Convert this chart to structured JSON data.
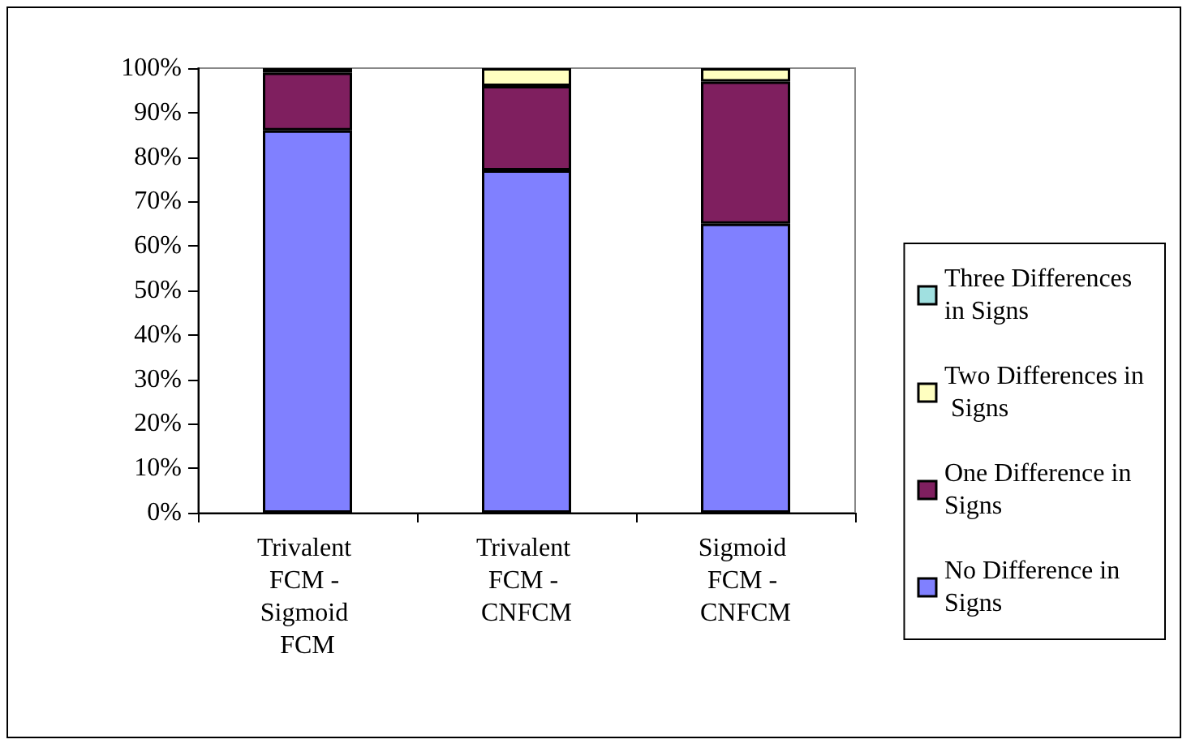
{
  "chart_data": {
    "type": "bar",
    "stacked": true,
    "categories": [
      "Trivalent FCM - Sigmoid FCM",
      "Trivalent FCM - CNFCM",
      "Sigmoid FCM - CNFCM"
    ],
    "series": [
      {
        "name": "No Difference in Signs",
        "color": "#8080ff",
        "values": [
          86,
          77,
          65
        ]
      },
      {
        "name": "One Difference in Signs",
        "color": "#7f1f5f",
        "values": [
          13,
          19,
          32
        ]
      },
      {
        "name": "Two Differences in Signs",
        "color": "#ffffc0",
        "values": [
          1,
          4,
          3
        ]
      },
      {
        "name": "Three Differences in Signs",
        "color": "#a0e0e0",
        "values": [
          0,
          0,
          0
        ]
      }
    ],
    "ylim": [
      0,
      100
    ],
    "yticks": [
      {
        "value": 0,
        "label": "0%"
      },
      {
        "value": 10,
        "label": "10%"
      },
      {
        "value": 20,
        "label": "20%"
      },
      {
        "value": 30,
        "label": "30%"
      },
      {
        "value": 40,
        "label": "40%"
      },
      {
        "value": 50,
        "label": "50%"
      },
      {
        "value": 60,
        "label": "60%"
      },
      {
        "value": 70,
        "label": "70%"
      },
      {
        "value": 80,
        "label": "80%"
      },
      {
        "value": 90,
        "label": "90%"
      },
      {
        "value": 100,
        "label": "100%"
      }
    ],
    "grid": false,
    "legend": "right"
  }
}
